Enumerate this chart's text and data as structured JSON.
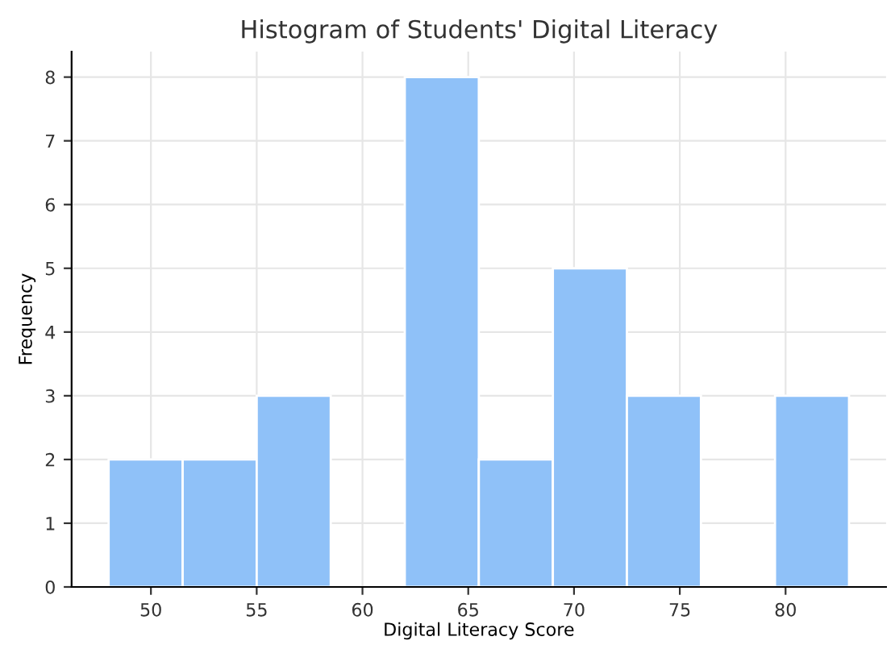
{
  "chart_data": {
    "type": "histogram",
    "title": "Histogram of Students' Digital Literacy",
    "xlabel": "Digital Literacy Score",
    "ylabel": "Frequency",
    "bins": [
      48,
      51.5,
      55,
      58.5,
      62,
      65.5,
      69,
      72.5,
      76,
      79.5,
      83
    ],
    "values": [
      2,
      2,
      3,
      0,
      8,
      2,
      5,
      3,
      0,
      3
    ],
    "color": "#8fc1f8",
    "xlim": [
      46.25,
      84.75
    ],
    "ylim": [
      0,
      8.4
    ],
    "xticks": [
      50,
      55,
      60,
      65,
      70,
      75,
      80
    ],
    "yticks": [
      0,
      1,
      2,
      3,
      4,
      5,
      6,
      7,
      8
    ],
    "grid": true,
    "legend": false
  }
}
